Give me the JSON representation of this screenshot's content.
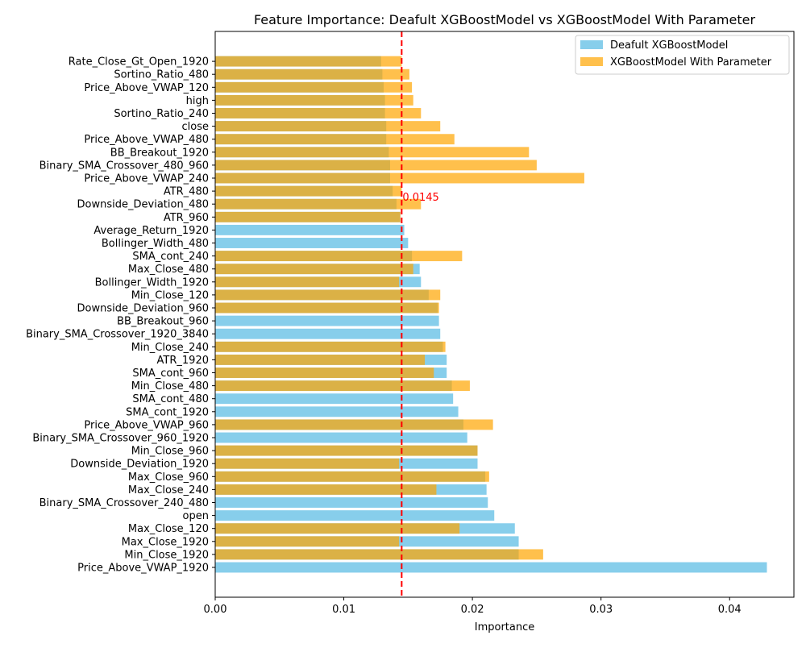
{
  "chart_data": {
    "type": "bar",
    "orientation": "horizontal",
    "title": "Feature Importance: Deafult XGBoostModel vs XGBoostModel With Parameter",
    "xlabel": "Importance",
    "ylabel": "",
    "xlim": [
      0,
      0.045
    ],
    "x_ticks": [
      "0.00",
      "0.01",
      "0.02",
      "0.03",
      "0.04"
    ],
    "x_tick_values": [
      0,
      0.01,
      0.02,
      0.03,
      0.04
    ],
    "grid": false,
    "legend_position": "upper right",
    "categories": [
      "Price_Above_VWAP_1920",
      "Min_Close_1920",
      "Max_Close_1920",
      "Max_Close_120",
      "open",
      "Binary_SMA_Crossover_240_480",
      "Max_Close_240",
      "Max_Close_960",
      "Downside_Deviation_1920",
      "Min_Close_960",
      "Binary_SMA_Crossover_960_1920",
      "Price_Above_VWAP_960",
      "SMA_cont_1920",
      "SMA_cont_480",
      "Min_Close_480",
      "SMA_cont_960",
      "ATR_1920",
      "Min_Close_240",
      "Binary_SMA_Crossover_1920_3840",
      "BB_Breakout_960",
      "Downside_Deviation_960",
      "Min_Close_120",
      "Bollinger_Width_1920",
      "Max_Close_480",
      "SMA_cont_240",
      "Bollinger_Width_480",
      "Average_Return_1920",
      "ATR_960",
      "Downside_Deviation_480",
      "ATR_480",
      "Price_Above_VWAP_240",
      "Binary_SMA_Crossover_480_960",
      "BB_Breakout_1920",
      "Price_Above_VWAP_480",
      "close",
      "Sortino_Ratio_240",
      "high",
      "Price_Above_VWAP_120",
      "Sortino_Ratio_480",
      "Rate_Close_Gt_Open_1920"
    ],
    "series": [
      {
        "name": "Deafult XGBoostModel",
        "color": "#87CEEB",
        "opacity": 1.0,
        "values": [
          0.0429,
          0.0236,
          0.0236,
          0.0233,
          0.0217,
          0.0212,
          0.0211,
          0.021,
          0.0204,
          0.0204,
          0.0196,
          0.0193,
          0.0189,
          0.0185,
          0.0184,
          0.018,
          0.018,
          0.0177,
          0.0175,
          0.0174,
          0.0173,
          0.0166,
          0.016,
          0.0159,
          0.0153,
          0.015,
          0.0147,
          0.0144,
          0.0141,
          0.0138,
          0.0136,
          0.0136,
          0.0135,
          0.0133,
          0.0133,
          0.0132,
          0.0132,
          0.0131,
          0.013,
          0.0129
        ]
      },
      {
        "name": "XGBoostModel With Parameter",
        "color": "#FFA500",
        "opacity": 0.7,
        "values": [
          0.0,
          0.0255,
          0.0143,
          0.019,
          0.0,
          0.0,
          0.0172,
          0.0213,
          0.0143,
          0.0204,
          0.0,
          0.0216,
          0.0,
          0.0,
          0.0198,
          0.017,
          0.0163,
          0.0179,
          0.0,
          0.0,
          0.0174,
          0.0175,
          0.0143,
          0.0154,
          0.0192,
          0.0,
          0.0,
          0.0144,
          0.016,
          0.0145,
          0.0287,
          0.025,
          0.0244,
          0.0186,
          0.0175,
          0.016,
          0.0154,
          0.0153,
          0.0151,
          0.0145
        ]
      }
    ],
    "reference_line": {
      "value": 0.0145,
      "label": "0.0145",
      "color": "#FF0000",
      "style": "dashed"
    }
  }
}
